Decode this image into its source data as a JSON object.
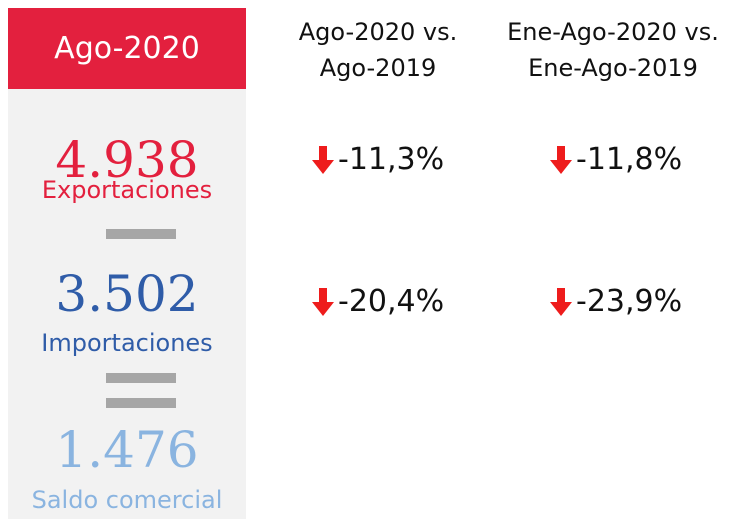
{
  "panel": {
    "title": "Ago-2020",
    "items": [
      {
        "value": "4.938",
        "label": "Exportaciones"
      },
      {
        "value": "3.502",
        "label": "Importaciones"
      },
      {
        "value": "1.476",
        "label": "Saldo comercial"
      }
    ]
  },
  "columns": [
    {
      "header": [
        "Ago-2020 vs.",
        "Ago-2019"
      ],
      "values": [
        "-11,3%",
        "-20,4%"
      ]
    },
    {
      "header": [
        "Ene-Ago-2020 vs.",
        "Ene-Ago-2019"
      ],
      "values": [
        "-11,8%",
        "-23,9%"
      ]
    }
  ]
}
